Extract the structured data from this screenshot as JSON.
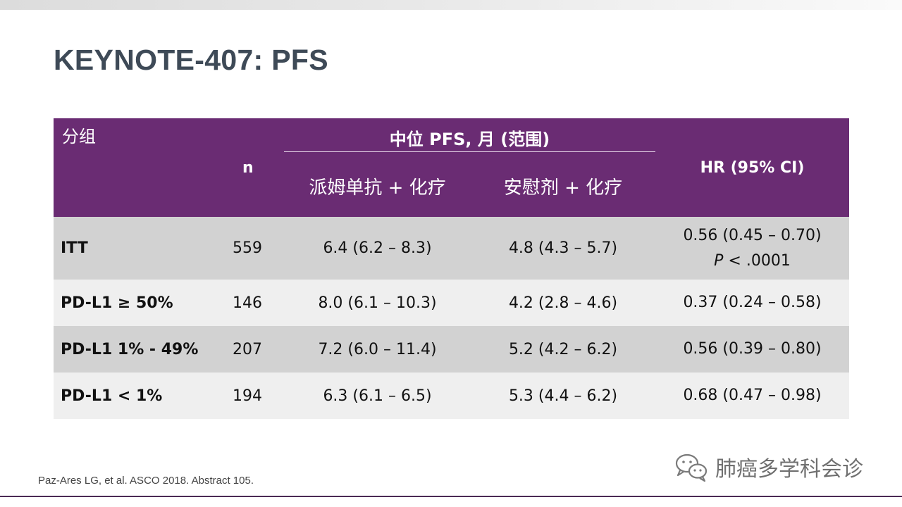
{
  "slide": {
    "title": "KEYNOTE-407: PFS",
    "citation": "Paz-Ares LG, et al. ASCO 2018. Abstract 105.",
    "watermark": "肺癌多学科会诊"
  },
  "colors": {
    "header_bg": "#6a2c73",
    "title_text": "#3e4a57",
    "row_dark": "#d2d2d2",
    "row_light": "#efefef"
  },
  "table": {
    "headers": {
      "group": "分组",
      "n": "n",
      "median": "中位 PFS, 月 (范围)",
      "arm1": "派姆单抗 + 化疗",
      "arm2": "安慰剂 + 化疗",
      "hr": "HR (95% CI)"
    },
    "rows": [
      {
        "name": "ITT",
        "n": "559",
        "arm1": "6.4 (6.2 – 8.3)",
        "arm2": "4.8 (4.3 – 5.7)",
        "hr": "0.56 (0.45 – 0.70)",
        "p_label": "P",
        "p_value": "< .0001"
      },
      {
        "name": "PD-L1 ≥ 50%",
        "n": "146",
        "arm1": "8.0 (6.1 – 10.3)",
        "arm2": "4.2 (2.8 – 4.6)",
        "hr": "0.37 (0.24 – 0.58)"
      },
      {
        "name": "PD-L1 1% - 49%",
        "n": "207",
        "arm1": "7.2 (6.0 – 11.4)",
        "arm2": "5.2 (4.2 – 6.2)",
        "hr": "0.56 (0.39 – 0.80)"
      },
      {
        "name": "PD-L1 < 1%",
        "n": "194",
        "arm1": "6.3 (6.1 – 6.5)",
        "arm2": "5.3 (4.4 – 6.2)",
        "hr": "0.68 (0.47 – 0.98)"
      }
    ]
  }
}
